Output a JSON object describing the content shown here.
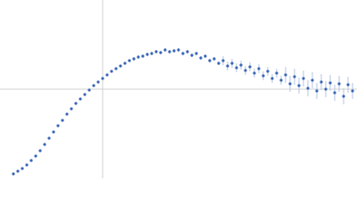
{
  "chart_data": {
    "type": "scatter",
    "xlim": [
      0,
      400
    ],
    "ylim": [
      0,
      200
    ],
    "xline": 115,
    "yline": 100,
    "color": "#3a66b8",
    "error_color": "#b3c4e6",
    "x": [
      15,
      20,
      25,
      30,
      35,
      40,
      45,
      50,
      55,
      60,
      65,
      70,
      75,
      80,
      85,
      90,
      95,
      100,
      105,
      110,
      115,
      120,
      125,
      130,
      135,
      140,
      145,
      150,
      155,
      160,
      165,
      170,
      175,
      180,
      185,
      190,
      195,
      200,
      205,
      210,
      215,
      220,
      225,
      230,
      235,
      240,
      245,
      250,
      255,
      260,
      265,
      270,
      275,
      280,
      285,
      290,
      295,
      300,
      305,
      310,
      315,
      320,
      325,
      330,
      335,
      340,
      345,
      350,
      355,
      360,
      365,
      370,
      375,
      380,
      385,
      390,
      395
    ],
    "values": [
      5,
      8,
      11,
      15,
      20,
      25,
      31,
      38,
      45,
      52,
      59,
      65,
      72,
      78,
      84,
      89,
      94,
      99,
      104,
      108,
      112,
      116,
      120,
      123,
      126,
      129,
      132,
      134,
      136,
      137,
      139,
      140,
      142,
      141,
      144,
      142,
      143,
      144,
      140,
      142,
      138,
      140,
      135,
      137,
      132,
      134,
      129,
      132,
      126,
      129,
      124,
      127,
      121,
      125,
      118,
      123,
      115,
      120,
      112,
      118,
      110,
      116,
      106,
      114,
      104,
      112,
      101,
      110,
      98,
      108,
      100,
      107,
      96,
      106,
      92,
      105,
      98
    ],
    "errors": [
      0.5,
      0.5,
      0.5,
      0.5,
      0.5,
      0.5,
      0.5,
      0.5,
      0.5,
      0.5,
      0.5,
      0.5,
      0.5,
      0.5,
      0.5,
      0.5,
      0.5,
      0.5,
      0.5,
      0.5,
      0.5,
      0.5,
      0.5,
      0.5,
      0.5,
      0.5,
      0.5,
      2,
      2,
      2,
      2,
      2,
      2,
      2,
      2,
      2,
      2,
      2,
      2,
      2,
      2,
      2,
      2,
      2,
      2,
      2,
      2,
      5,
      5,
      5,
      5,
      5,
      5,
      5,
      5,
      5,
      5,
      5,
      5,
      5,
      5,
      9,
      9,
      9,
      9,
      9,
      9,
      9,
      9,
      9,
      9,
      9,
      9,
      9,
      9,
      9,
      9
    ]
  }
}
